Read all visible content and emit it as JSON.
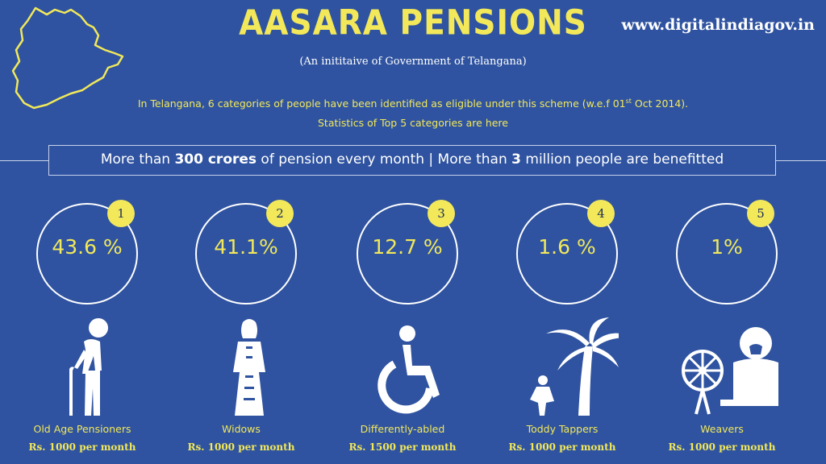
{
  "header": {
    "title": "AASARA PENSIONS",
    "website": "www.digitalindiagov.in",
    "subtitle": "(An inititaive of Government of Telangana)",
    "intro_line1_pre": "In Telangana, 6 categories of people have been identified as eligible under this scheme (w.e.f  01",
    "intro_line1_sup": "st",
    "intro_line1_post": " Oct 2014).",
    "intro_line2": "Statistics of Top 5 categories are here"
  },
  "banner": {
    "t1": "More than ",
    "b1": "300 crores",
    "t2": " of pension every month | More than ",
    "b2": "3",
    "t3": " million people are benefitted"
  },
  "categories": [
    {
      "rank": "1",
      "percent": "43.6 %",
      "name": "Old Age Pensioners",
      "amount": "Rs. 1000 per month",
      "icon": "elderly-person-icon"
    },
    {
      "rank": "2",
      "percent": "41.1%",
      "name": "Widows",
      "amount": "Rs. 1000 per month",
      "icon": "widow-icon"
    },
    {
      "rank": "3",
      "percent": "12.7 %",
      "name": "Differently-abled",
      "amount": "Rs. 1500 per month",
      "icon": "wheelchair-icon"
    },
    {
      "rank": "4",
      "percent": "1.6 %",
      "name": "Toddy Tappers",
      "amount": "Rs. 1000 per month",
      "icon": "palm-tree-icon"
    },
    {
      "rank": "5",
      "percent": "1%",
      "name": "Weavers",
      "amount": "Rs. 1000 per month",
      "icon": "weaver-icon"
    }
  ],
  "colors": {
    "background": "#2f53a0",
    "accent": "#f2e85a",
    "text": "#ffffff"
  }
}
